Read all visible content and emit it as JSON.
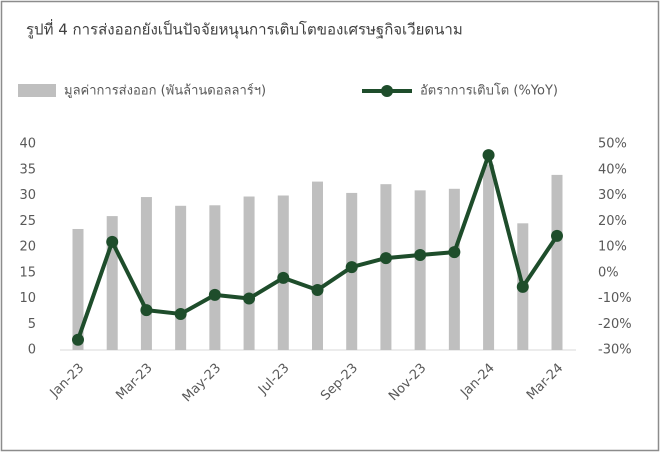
{
  "chart_data": {
    "type": "bar-line",
    "title": "รูปที่ 4 การส่งออกยังเป็นปัจจัยหนุนการเติบโตของเศรษฐกิจเวียดนาม",
    "categories": [
      "Jan-23",
      null,
      "Mar-23",
      null,
      "May-23",
      null,
      "Jul-23",
      null,
      "Sep-23",
      null,
      "Nov-23",
      null,
      "Jan-24",
      null,
      "Mar-24"
    ],
    "series": [
      {
        "name": "มูลค่าการส่งออก (พันล้านดอลลาร์ฯ)",
        "type": "bar",
        "color": "#bfbfbf",
        "values": [
          23.5,
          26,
          29.7,
          28,
          28.1,
          29.8,
          30,
          32.7,
          30.5,
          32.2,
          31,
          31.3,
          36,
          24.6,
          34
        ]
      },
      {
        "name": "อัตราการเติบโต (%YoY)",
        "type": "line",
        "axis": "y2",
        "color": "#1e4d2b",
        "values": [
          -26,
          12,
          -14.5,
          -16,
          -8.6,
          -10,
          -2,
          -6.7,
          2.2,
          5.7,
          6.9,
          8,
          45.7,
          -5.5,
          14.3
        ]
      }
    ],
    "ylim": [
      0,
      40
    ],
    "yticks": [
      0,
      5,
      10,
      15,
      20,
      25,
      30,
      35,
      40
    ],
    "y2lim": [
      -30,
      50
    ],
    "y2ticks": [
      {
        "value": -30,
        "label": "-30%"
      },
      {
        "value": -20,
        "label": "-20%"
      },
      {
        "value": -10,
        "label": "-10%"
      },
      {
        "value": 0,
        "label": "0%"
      },
      {
        "value": 10,
        "label": "10%"
      },
      {
        "value": 20,
        "label": "20%"
      },
      {
        "value": 30,
        "label": "30%"
      },
      {
        "value": 40,
        "label": "40%"
      },
      {
        "value": 50,
        "label": "50%"
      }
    ],
    "grid": false
  }
}
